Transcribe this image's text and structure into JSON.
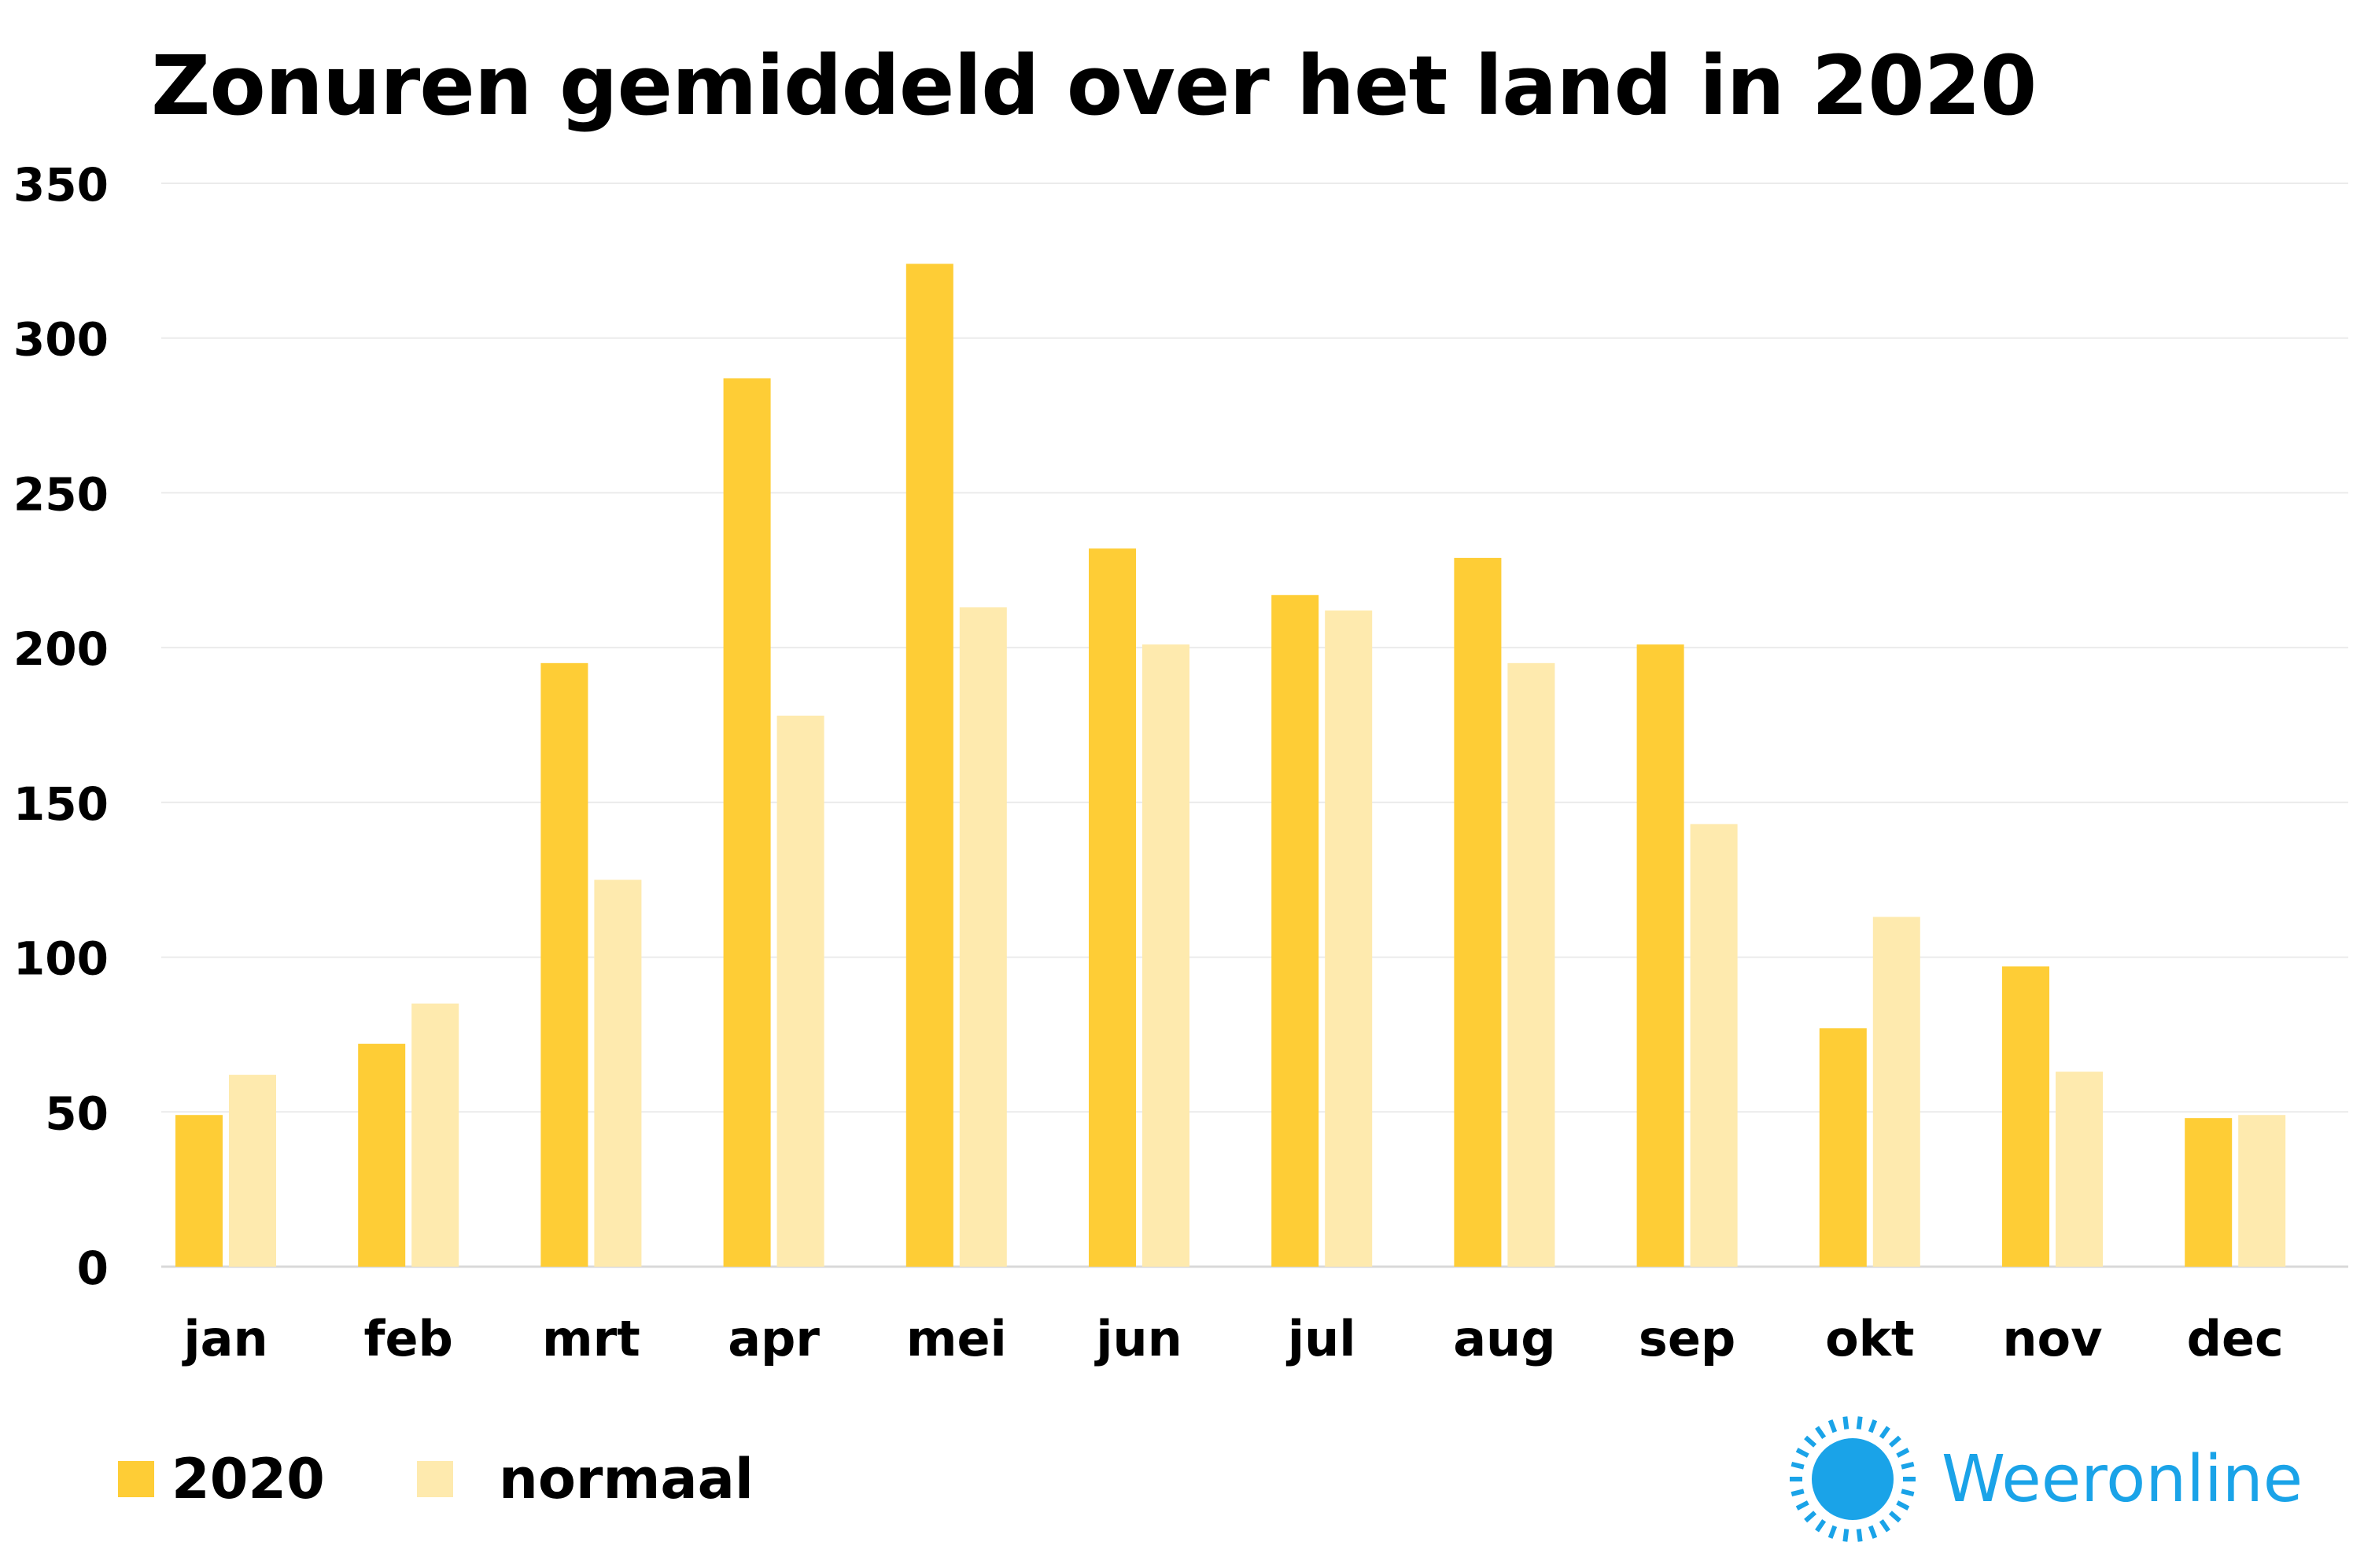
{
  "chart_data": {
    "type": "bar",
    "title": "Zonuren gemiddeld over het land in 2020",
    "xlabel": "",
    "ylabel": "",
    "ylim": [
      0,
      350
    ],
    "yticks": [
      0,
      50,
      100,
      150,
      200,
      250,
      300,
      350
    ],
    "grid": true,
    "legend_position": "bottom-left",
    "categories": [
      "jan",
      "feb",
      "mrt",
      "apr",
      "mei",
      "jun",
      "jul",
      "aug",
      "sep",
      "okt",
      "nov",
      "dec"
    ],
    "series": [
      {
        "name": "2020",
        "color": "#fecd36",
        "values": [
          49,
          72,
          195,
          287,
          324,
          232,
          217,
          229,
          201,
          77,
          97,
          48
        ]
      },
      {
        "name": "normaal",
        "color": "#feeaae",
        "values": [
          62,
          85,
          125,
          178,
          213,
          201,
          212,
          195,
          143,
          113,
          63,
          49
        ]
      }
    ]
  },
  "brand": {
    "name": "Weeronline",
    "color": "#1aa3e8"
  }
}
